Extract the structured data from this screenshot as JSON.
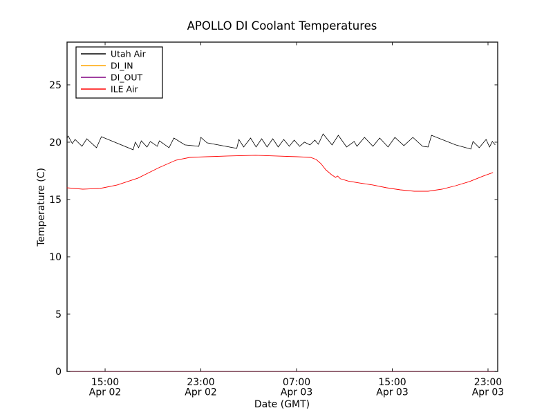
{
  "page": {
    "background": "#ffffff"
  },
  "chart_data": {
    "type": "line",
    "title": "APOLLO DI Coolant Temperatures",
    "xlabel": "Date (GMT)",
    "ylabel": "Temperature (C)",
    "x_unit": "hours since Apr 02 00:00 GMT",
    "xlim": [
      11.82,
      47.81
    ],
    "ylim": [
      0,
      28.73
    ],
    "grid": false,
    "legend_position": "upper-left",
    "axis_color": "#1a1a1a",
    "x_ticks": [
      {
        "t": 15,
        "time": "15:00",
        "date": "Apr 02"
      },
      {
        "t": 23,
        "time": "23:00",
        "date": "Apr 02"
      },
      {
        "t": 31,
        "time": "07:00",
        "date": "Apr 03"
      },
      {
        "t": 39,
        "time": "15:00",
        "date": "Apr 03"
      },
      {
        "t": 47,
        "time": "23:00",
        "date": "Apr 03"
      }
    ],
    "y_ticks": [
      {
        "v": 0,
        "label": "0"
      },
      {
        "v": 5,
        "label": "5"
      },
      {
        "v": 10,
        "label": "10"
      },
      {
        "v": 15,
        "label": "15"
      },
      {
        "v": 20,
        "label": "20"
      },
      {
        "v": 25,
        "label": "25"
      }
    ],
    "legend": [
      {
        "label": "Utah Air",
        "color": "#000000"
      },
      {
        "label": "DI_IN",
        "color": "#ffa500"
      },
      {
        "label": "DI_OUT",
        "color": "#800080"
      },
      {
        "label": "ILE Air",
        "color": "#ff0000"
      }
    ],
    "series": [
      {
        "name": "DI_IN",
        "color": "#ffa500",
        "width": 1.0,
        "opacity": 0.55,
        "points": [
          [
            11.82,
            0
          ],
          [
            47.81,
            0
          ]
        ]
      },
      {
        "name": "DI_OUT",
        "color": "#800080",
        "width": 1.0,
        "opacity": 0.55,
        "points": [
          [
            11.82,
            0
          ],
          [
            47.81,
            0
          ]
        ]
      },
      {
        "name": "ILE Air",
        "color": "#ff0000",
        "width": 0.9,
        "opacity": 1,
        "points": [
          [
            11.8,
            16.02
          ],
          [
            13.13,
            15.9
          ],
          [
            14.57,
            15.96
          ],
          [
            16.01,
            16.27
          ],
          [
            17.75,
            16.87
          ],
          [
            19.48,
            17.77
          ],
          [
            20.92,
            18.43
          ],
          [
            22.08,
            18.67
          ],
          [
            23.52,
            18.73
          ],
          [
            25.25,
            18.8
          ],
          [
            27.56,
            18.86
          ],
          [
            29.29,
            18.8
          ],
          [
            31.02,
            18.73
          ],
          [
            32.18,
            18.67
          ],
          [
            32.64,
            18.49
          ],
          [
            33.04,
            18.13
          ],
          [
            33.45,
            17.59
          ],
          [
            33.91,
            17.17
          ],
          [
            34.26,
            16.93
          ],
          [
            34.43,
            17.05
          ],
          [
            34.66,
            16.81
          ],
          [
            35.35,
            16.6
          ],
          [
            36.22,
            16.45
          ],
          [
            37.37,
            16.27
          ],
          [
            38.53,
            16.02
          ],
          [
            39.68,
            15.84
          ],
          [
            40.84,
            15.72
          ],
          [
            41.99,
            15.72
          ],
          [
            43.15,
            15.9
          ],
          [
            44.3,
            16.2
          ],
          [
            45.46,
            16.57
          ],
          [
            46.61,
            17.05
          ],
          [
            47.42,
            17.35
          ]
        ]
      },
      {
        "name": "Utah Air",
        "color": "#000000",
        "width": 0.8,
        "opacity": 1,
        "points": [
          [
            11.8,
            20.36
          ],
          [
            11.92,
            20.54
          ],
          [
            12.26,
            19.88
          ],
          [
            12.49,
            20.24
          ],
          [
            13.07,
            19.64
          ],
          [
            13.47,
            20.3
          ],
          [
            14.28,
            19.52
          ],
          [
            14.69,
            20.48
          ],
          [
            17.34,
            19.34
          ],
          [
            17.52,
            20.0
          ],
          [
            17.8,
            19.52
          ],
          [
            18.03,
            20.12
          ],
          [
            18.5,
            19.58
          ],
          [
            18.78,
            20.06
          ],
          [
            19.36,
            19.64
          ],
          [
            19.54,
            20.12
          ],
          [
            20.34,
            19.52
          ],
          [
            20.75,
            20.36
          ],
          [
            21.67,
            19.76
          ],
          [
            22.83,
            19.64
          ],
          [
            23.0,
            20.42
          ],
          [
            23.52,
            19.94
          ],
          [
            26.0,
            19.46
          ],
          [
            26.18,
            20.24
          ],
          [
            26.58,
            19.58
          ],
          [
            27.16,
            20.36
          ],
          [
            27.62,
            19.58
          ],
          [
            28.08,
            20.3
          ],
          [
            28.54,
            19.58
          ],
          [
            29.01,
            20.3
          ],
          [
            29.47,
            19.58
          ],
          [
            29.93,
            20.24
          ],
          [
            30.39,
            19.64
          ],
          [
            30.8,
            20.18
          ],
          [
            31.26,
            19.64
          ],
          [
            31.66,
            20.0
          ],
          [
            32.12,
            19.76
          ],
          [
            32.53,
            20.18
          ],
          [
            32.82,
            19.82
          ],
          [
            33.22,
            20.72
          ],
          [
            33.97,
            19.76
          ],
          [
            34.49,
            20.6
          ],
          [
            35.18,
            19.58
          ],
          [
            35.82,
            20.06
          ],
          [
            36.05,
            19.64
          ],
          [
            36.68,
            20.42
          ],
          [
            37.38,
            19.64
          ],
          [
            37.95,
            20.36
          ],
          [
            38.65,
            19.58
          ],
          [
            39.22,
            20.42
          ],
          [
            39.97,
            19.7
          ],
          [
            40.72,
            20.42
          ],
          [
            41.53,
            19.64
          ],
          [
            41.99,
            19.58
          ],
          [
            42.28,
            20.6
          ],
          [
            44.3,
            19.76
          ],
          [
            45.57,
            19.4
          ],
          [
            45.75,
            20.06
          ],
          [
            46.27,
            19.52
          ],
          [
            46.84,
            20.24
          ],
          [
            47.13,
            19.58
          ],
          [
            47.36,
            20.06
          ],
          [
            47.6,
            19.76
          ]
        ]
      }
    ]
  }
}
